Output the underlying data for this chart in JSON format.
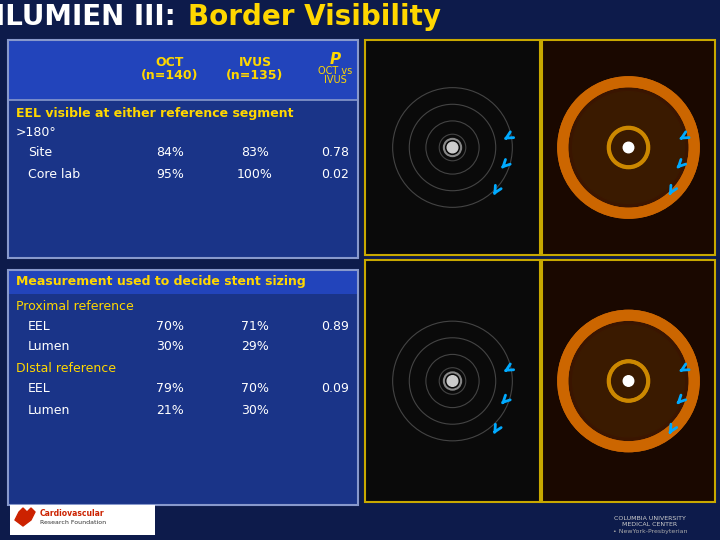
{
  "title_part1": "ILUMIEN III: ",
  "title_part2": "Border Visibility",
  "title_color1": "#FFFFFF",
  "title_color2": "#FFD700",
  "bg_color": "#0d1b4b",
  "table1_bg": "#1e3a9e",
  "table2_bg": "#1a3488",
  "header_bar_bg": "#2244bb",
  "col_header_color": "#FFD700",
  "body_text_color": "#FFFFFF",
  "section_header_color": "#FFD700",
  "section_sub_color": "#FFD700",
  "border_color": "#8899cc",
  "section1_header": "EEL visible at either reference segment",
  "section1_sub": ">180°",
  "section1_rows": [
    [
      "Site",
      "84%",
      "83%",
      "0.78"
    ],
    [
      "Core lab",
      "95%",
      "100%",
      "0.02"
    ]
  ],
  "section2_header": "Measurement used to decide stent sizing",
  "section2_sub1": "Proximal reference",
  "section2_rows1": [
    [
      "EEL",
      "70%",
      "71%",
      "0.89"
    ],
    [
      "Lumen",
      "30%",
      "29%",
      ""
    ]
  ],
  "section2_sub2": "DIstal reference",
  "section2_rows2": [
    [
      "EEL",
      "79%",
      "70%",
      "0.09"
    ],
    [
      "Lumen",
      "21%",
      "30%",
      ""
    ]
  ]
}
